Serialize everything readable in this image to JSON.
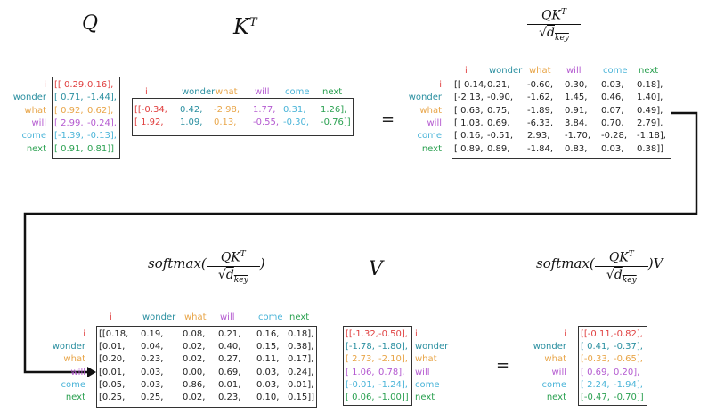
{
  "tokens": [
    "i",
    "wonder",
    "what",
    "will",
    "come",
    "next"
  ],
  "colors": {
    "i": "#e04040",
    "wonder": "#2a8fa0",
    "what": "#e8a548",
    "will": "#b45ad0",
    "come": "#4ab4d8",
    "next": "#2aa050"
  },
  "titles": {
    "q": "Q",
    "kt_base": "K",
    "kt_sup": "T",
    "scores_num_base": "QK",
    "scores_num_sup": "T",
    "scores_den_sqrt": "√",
    "scores_den_base": "d",
    "scores_den_sub": "key",
    "softmax_prefix": "softmax(",
    "softmax_suffix": ")",
    "v": "V",
    "output_suffix": ")V"
  },
  "equals": "=",
  "matrices": {
    "q": [
      [
        "[[ 0.29,",
        "0.16],"
      ],
      [
        "[ 0.71,",
        "-1.44],"
      ],
      [
        "[ 0.92,",
        "0.62],"
      ],
      [
        "[ 2.99,",
        "-0.24],"
      ],
      [
        "[-1.39,",
        "-0.13],"
      ],
      [
        "[ 0.91,",
        "0.81]]"
      ]
    ],
    "kt": [
      [
        "[[-0.34,",
        "0.42,",
        "-2.98,",
        "1.77,",
        "0.31,",
        "1.26],"
      ],
      [
        "[ 1.92,",
        "1.09,",
        "0.13,",
        "-0.55,",
        "-0.30,",
        "-0.76]]"
      ]
    ],
    "scores": [
      [
        "[[ 0.14,",
        "0.21,",
        "-0.60,",
        "0.30,",
        "0.03,",
        "0.18],"
      ],
      [
        "[-2.13,",
        "-0.90,",
        "-1.62,",
        "1.45,",
        "0.46,",
        "1.40],"
      ],
      [
        "[ 0.63,",
        "0.75,",
        "-1.89,",
        "0.91,",
        "0.07,",
        "0.49],"
      ],
      [
        "[ 1.03,",
        "0.69,",
        "-6.33,",
        "3.84,",
        "0.70,",
        "2.79],"
      ],
      [
        "[ 0.16,",
        "-0.51,",
        "2.93,",
        "-1.70,",
        "-0.28,",
        "-1.18],"
      ],
      [
        "[ 0.89,",
        "0.89,",
        "-1.84,",
        "0.83,",
        "0.03,",
        "0.38]]"
      ]
    ],
    "softmax": [
      [
        "[[0.18,",
        "0.19,",
        "0.08,",
        "0.21,",
        "0.16,",
        "0.18],"
      ],
      [
        "[0.01,",
        "0.04,",
        "0.02,",
        "0.40,",
        "0.15,",
        "0.38],"
      ],
      [
        "[0.20,",
        "0.23,",
        "0.02,",
        "0.27,",
        "0.11,",
        "0.17],"
      ],
      [
        "[0.01,",
        "0.03,",
        "0.00,",
        "0.69,",
        "0.03,",
        "0.24],"
      ],
      [
        "[0.05,",
        "0.03,",
        "0.86,",
        "0.01,",
        "0.03,",
        "0.01],"
      ],
      [
        "[0.25,",
        "0.25,",
        "0.02,",
        "0.23,",
        "0.10,",
        "0.15]]"
      ]
    ],
    "v": [
      [
        "[[-1.32,",
        "-0.50],"
      ],
      [
        "[-1.78,",
        "-1.80],"
      ],
      [
        "[ 2.73,",
        "-2.10],"
      ],
      [
        "[ 1.06,",
        "0.78],"
      ],
      [
        "[-0.01,",
        "-1.24],"
      ],
      [
        "[ 0.06,",
        "-1.00]]"
      ]
    ],
    "output": [
      [
        "[[-0.11,",
        "-0.82],"
      ],
      [
        "[ 0.41,",
        "-0.37],"
      ],
      [
        "[-0.33,",
        "-0.65],"
      ],
      [
        "[ 0.69,",
        "0.20],"
      ],
      [
        "[ 2.24,",
        "-1.94],"
      ],
      [
        "[-0.47,",
        "-0.70]]"
      ]
    ]
  }
}
